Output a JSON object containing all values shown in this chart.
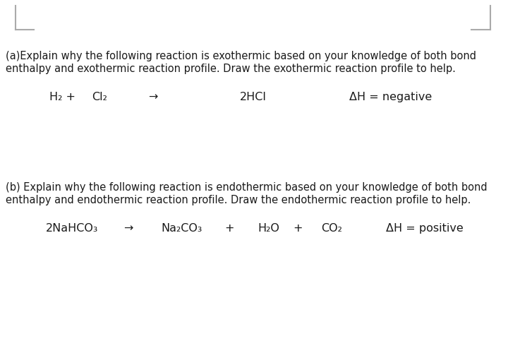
{
  "background_color": "#ffffff",
  "text_color": "#1a1a1a",
  "font_size_body": 10.5,
  "font_size_equation": 11.5,
  "part_a_line1": "(a)Explain why the following reaction is exothermic based on your knowledge of both bond",
  "part_a_line2": "enthalpy and exothermic reaction profile. Draw the exothermic reaction profile to help.",
  "part_b_line1": "(b) Explain why the following reaction is endothermic based on your knowledge of both bond",
  "part_b_line2": "enthalpy and endothermic reaction profile. Draw the endothermic reaction profile to help.",
  "fig_width": 7.2,
  "fig_height": 4.83,
  "dpi": 100,
  "corner_color": "#aaaaaa"
}
